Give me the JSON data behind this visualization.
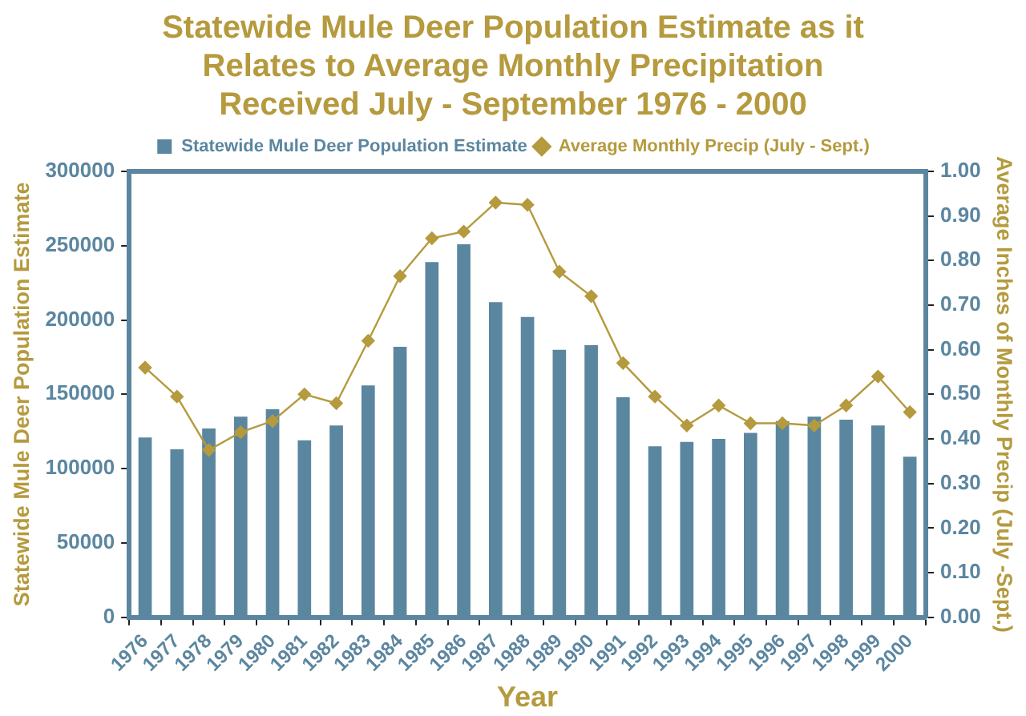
{
  "chart_data": {
    "type": "bar",
    "title": "Statewide Mule Deer Population Estimate as it Relates to Average Monthly Precipitation Received July - September 1976 - 2000",
    "xlabel": "Year",
    "ylabel": "Statewide Mule Deer Population Estimate",
    "y2label": "Average Inches of Monthly Precip (July -Sept.)",
    "categories": [
      "1976",
      "1977",
      "1978",
      "1979",
      "1980",
      "1981",
      "1982",
      "1983",
      "1984",
      "1985",
      "1986",
      "1987",
      "1988",
      "1989",
      "1990",
      "1991",
      "1992",
      "1993",
      "1994",
      "1995",
      "1996",
      "1997",
      "1998",
      "1999",
      "2000"
    ],
    "series": [
      {
        "name": "Statewide Mule Deer Population Estimate",
        "color": "#5b86a0",
        "values": [
          121000,
          113000,
          127000,
          135000,
          140000,
          119000,
          129000,
          156000,
          182000,
          239000,
          251000,
          212000,
          202000,
          180000,
          183000,
          148000,
          115000,
          118000,
          120000,
          124000,
          132000,
          135000,
          133000,
          129000,
          108000
        ]
      },
      {
        "name": "Average Monthly Precip (July - Sept.)",
        "type": "line",
        "axis": "y2",
        "color": "#b59a3e",
        "marker": "diamond",
        "values": [
          0.56,
          0.495,
          0.375,
          0.415,
          0.44,
          0.5,
          0.48,
          0.62,
          0.765,
          0.85,
          0.865,
          0.93,
          0.925,
          0.775,
          0.72,
          0.57,
          0.495,
          0.43,
          0.475,
          0.435,
          0.435,
          0.43,
          0.475,
          0.54,
          0.46
        ]
      }
    ],
    "ylim": [
      0,
      300000
    ],
    "yticks": [
      0,
      50000,
      100000,
      150000,
      200000,
      250000,
      300000
    ],
    "y2lim": [
      0,
      1
    ],
    "y2ticks": [
      {
        "value": 0,
        "label": "0.00"
      },
      {
        "value": 0.1,
        "label": "0.10"
      },
      {
        "value": 0.2,
        "label": "0.20"
      },
      {
        "value": 0.3,
        "label": "0.30"
      },
      {
        "value": 0.4,
        "label": "0.40"
      },
      {
        "value": 0.5,
        "label": "0.50"
      },
      {
        "value": 0.6,
        "label": "0.60"
      },
      {
        "value": 0.7,
        "label": "0.70"
      },
      {
        "value": 0.8,
        "label": "0.80"
      },
      {
        "value": 0.9,
        "label": "0.90"
      },
      {
        "value": 1,
        "label": "1.00"
      }
    ],
    "grid": false,
    "legend": "top"
  }
}
